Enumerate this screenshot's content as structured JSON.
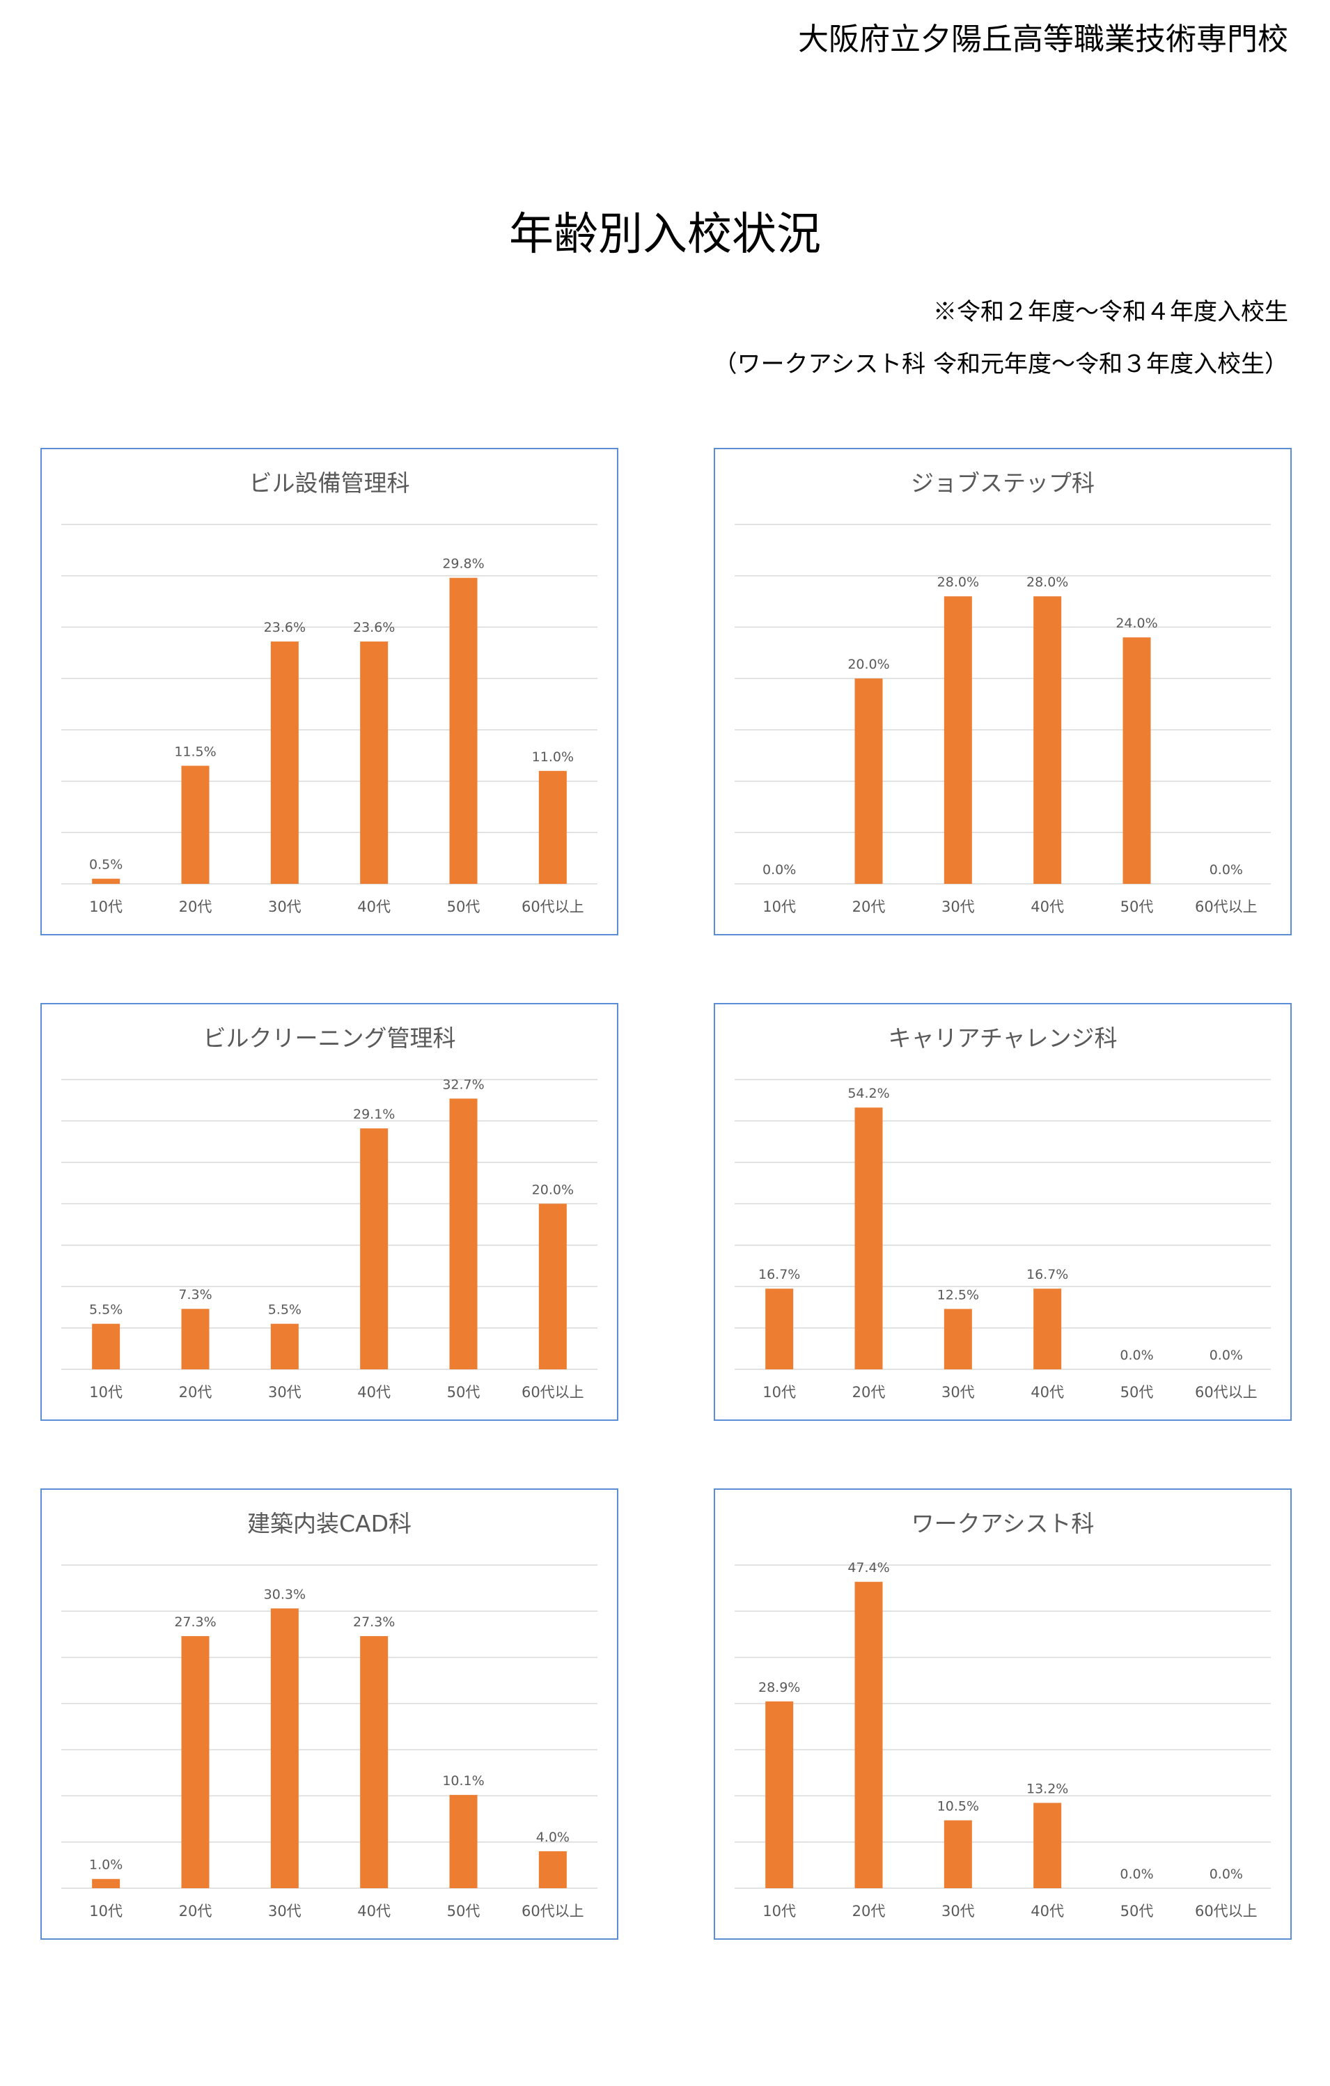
{
  "header": {
    "school_name": "大阪府立夕陽丘高等職業技術専門校",
    "title": "年齢別入校状況",
    "note_line1": "※令和２年度～令和４年度入校生",
    "note_line2": "（ワークアシスト科 令和元年度～令和３年度入校生）"
  },
  "colors": {
    "bar": "#ed7d31",
    "grid": "#d9d9d9",
    "border": "#5b8ed6",
    "label": "#595959"
  },
  "chart_data": [
    {
      "type": "bar",
      "title": "ビル設備管理科",
      "categories": [
        "10代",
        "20代",
        "30代",
        "40代",
        "50代",
        "60代以上"
      ],
      "values": [
        0.5,
        11.5,
        23.6,
        23.6,
        29.8,
        11.0
      ],
      "labels": [
        "0.5%",
        "11.5%",
        "23.6%",
        "23.6%",
        "29.8%",
        "11.0%"
      ],
      "ylim": [
        0,
        35
      ],
      "grid": true
    },
    {
      "type": "bar",
      "title": "ジョブステップ科",
      "categories": [
        "10代",
        "20代",
        "30代",
        "40代",
        "50代",
        "60代以上"
      ],
      "values": [
        0.0,
        20.0,
        28.0,
        28.0,
        24.0,
        0.0
      ],
      "labels": [
        "0.0%",
        "20.0%",
        "28.0%",
        "28.0%",
        "24.0%",
        "0.0%"
      ],
      "ylim": [
        0,
        35
      ],
      "grid": true
    },
    {
      "type": "bar",
      "title": "ビルクリーニング管理科",
      "categories": [
        "10代",
        "20代",
        "30代",
        "40代",
        "50代",
        "60代以上"
      ],
      "values": [
        5.5,
        7.3,
        5.5,
        29.1,
        32.7,
        20.0
      ],
      "labels": [
        "5.5%",
        "7.3%",
        "5.5%",
        "29.1%",
        "32.7%",
        "20.0%"
      ],
      "ylim": [
        0,
        35
      ],
      "grid": true
    },
    {
      "type": "bar",
      "title": "キャリアチャレンジ科",
      "categories": [
        "10代",
        "20代",
        "30代",
        "40代",
        "50代",
        "60代以上"
      ],
      "values": [
        16.7,
        54.2,
        12.5,
        16.7,
        0.0,
        0.0
      ],
      "labels": [
        "16.7%",
        "54.2%",
        "12.5%",
        "16.7%",
        "0.0%",
        "0.0%"
      ],
      "ylim": [
        0,
        60
      ],
      "grid": true
    },
    {
      "type": "bar",
      "title": "建築内装CAD科",
      "categories": [
        "10代",
        "20代",
        "30代",
        "40代",
        "50代",
        "60代以上"
      ],
      "values": [
        1.0,
        27.3,
        30.3,
        27.3,
        10.1,
        4.0
      ],
      "labels": [
        "1.0%",
        "27.3%",
        "30.3%",
        "27.3%",
        "10.1%",
        "4.0%"
      ],
      "ylim": [
        0,
        35
      ],
      "grid": true
    },
    {
      "type": "bar",
      "title": "ワークアシスト科",
      "categories": [
        "10代",
        "20代",
        "30代",
        "40代",
        "50代",
        "60代以上"
      ],
      "values": [
        28.9,
        47.4,
        10.5,
        13.2,
        0.0,
        0.0
      ],
      "labels": [
        "28.9%",
        "47.4%",
        "10.5%",
        "13.2%",
        "0.0%",
        "0.0%"
      ],
      "ylim": [
        0,
        50
      ],
      "grid": true
    }
  ]
}
